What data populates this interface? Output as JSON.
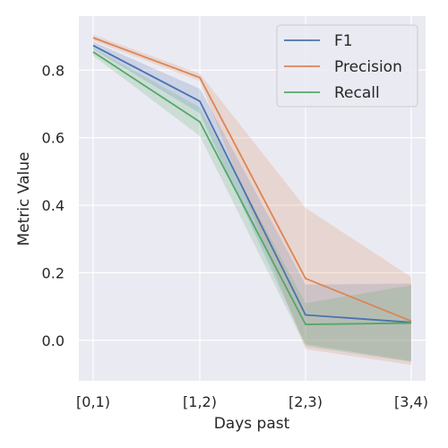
{
  "chart_data": {
    "type": "line",
    "xlabel": "Days past",
    "ylabel": "Metric Value",
    "categories": [
      "[0,1)",
      "[1,2)",
      "[2,3)",
      "[3,4)"
    ],
    "ylim": [
      -0.12,
      0.96
    ],
    "yticks": [
      0.0,
      0.2,
      0.4,
      0.6,
      0.8
    ],
    "grid": true,
    "legend_position": "top-right",
    "series": [
      {
        "name": "F1",
        "color": "#4c72b0",
        "values": [
          0.873,
          0.708,
          0.075,
          0.053
        ],
        "lower": [
          0.862,
          0.672,
          -0.012,
          -0.062
        ],
        "upper": [
          0.884,
          0.745,
          0.165,
          0.168
        ]
      },
      {
        "name": "Precision",
        "color": "#dd8452",
        "values": [
          0.896,
          0.778,
          0.183,
          0.057
        ],
        "lower": [
          0.887,
          0.768,
          -0.026,
          -0.073
        ],
        "upper": [
          0.905,
          0.79,
          0.392,
          0.187
        ]
      },
      {
        "name": "Recall",
        "color": "#55a868",
        "values": [
          0.854,
          0.647,
          0.047,
          0.051
        ],
        "lower": [
          0.843,
          0.605,
          -0.018,
          -0.064
        ],
        "upper": [
          0.866,
          0.69,
          0.11,
          0.163
        ]
      }
    ]
  }
}
